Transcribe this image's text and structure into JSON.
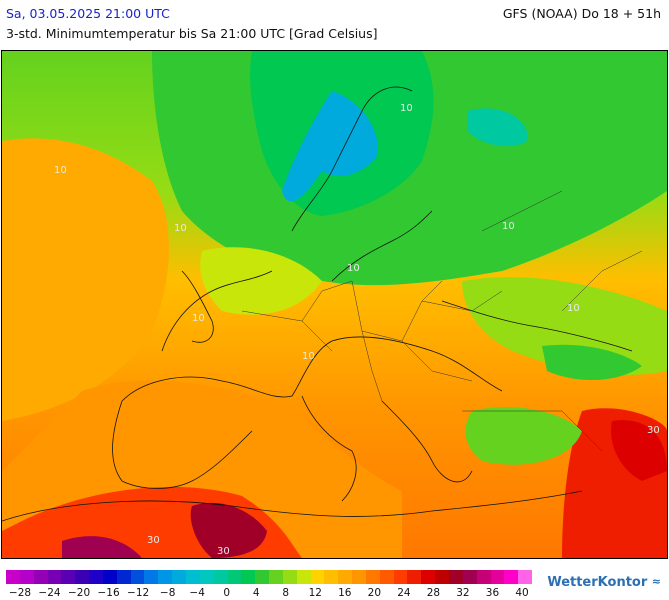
{
  "header": {
    "date_label": "Sa, 03.05.2025 21:00 UTC",
    "model_label": "GFS (NOAA) Do 18 + 51h",
    "subtitle": "3-std. Minimumtemperatur bis Sa 21:00 UTC [Grad Celsius]"
  },
  "map": {
    "region": "Europe",
    "isoline_labels": [
      "10",
      "10",
      "10",
      "10",
      "10",
      "10",
      "10",
      "10",
      "30",
      "30",
      "30"
    ]
  },
  "legend": {
    "tick_labels": [
      "−28",
      "−24",
      "−20",
      "−16",
      "−12",
      "−8",
      "−4",
      "0",
      "4",
      "8",
      "12",
      "16",
      "20",
      "24",
      "28",
      "32",
      "36",
      "40"
    ],
    "colors": [
      "#c800c8",
      "#b400c8",
      "#9600b4",
      "#7800b4",
      "#5a00b4",
      "#3c00b4",
      "#1e00c8",
      "#0000c8",
      "#0028d2",
      "#0050dc",
      "#0078e6",
      "#0096e6",
      "#00aadc",
      "#00bed2",
      "#00c8be",
      "#00c8a0",
      "#00c878",
      "#00c850",
      "#32c832",
      "#64d21e",
      "#96dc14",
      "#c8e60a",
      "#ffd200",
      "#ffbe00",
      "#ffaa00",
      "#ff9600",
      "#ff7800",
      "#ff5a00",
      "#ff3c00",
      "#f01e00",
      "#dc0000",
      "#be0000",
      "#a00028",
      "#a00050",
      "#c80078",
      "#e6009b",
      "#ff00c8",
      "#ff64e6"
    ],
    "brand": "WetterKontor",
    "brand_icon": "wind-icon"
  }
}
